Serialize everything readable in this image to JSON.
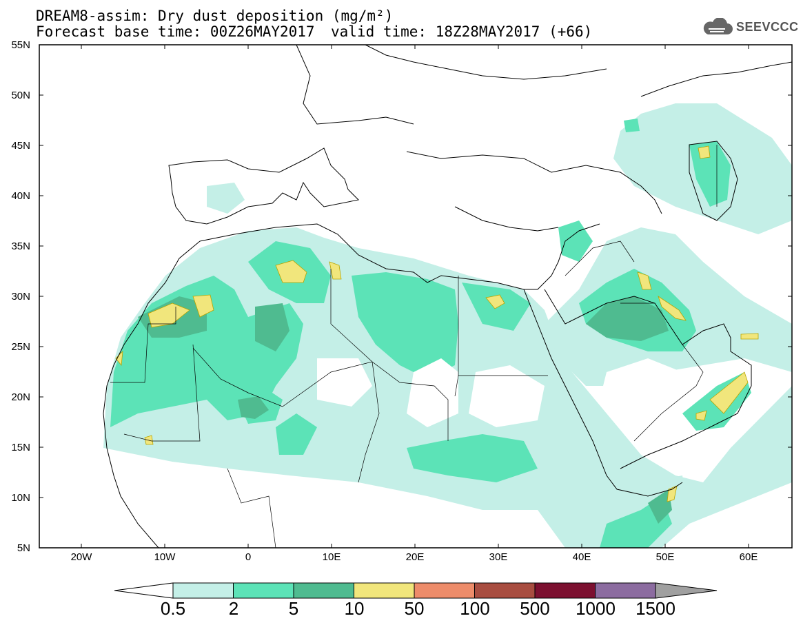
{
  "header": {
    "line1": "DREAM8-assim: Dry dust deposition (mg/m²)",
    "line2": "Forecast base time: 00Z26MAY2017",
    "line2b": "valid time: 18Z28MAY2017 (+66)"
  },
  "logo": {
    "text": "SEEVCCC",
    "icon": "cloud-icon"
  },
  "map": {
    "extent": {
      "lon_min": -25,
      "lon_max": 65,
      "lat_min": 5,
      "lat_max": 55
    },
    "lat_labels": [
      "55N",
      "50N",
      "45N",
      "40N",
      "35N",
      "30N",
      "25N",
      "20N",
      "15N",
      "10N",
      "5N"
    ],
    "lon_labels": [
      "20W",
      "10W",
      "0",
      "10E",
      "20E",
      "30E",
      "40E",
      "50E",
      "60E"
    ]
  },
  "colorbar": {
    "labels": [
      "0.5",
      "2",
      "5",
      "10",
      "50",
      "100",
      "500",
      "1000",
      "1500"
    ],
    "colors": [
      "#c4efe7",
      "#5ce3b7",
      "#4fbb90",
      "#f1e67c",
      "#ed8c6a",
      "#a84d40",
      "#7c1030",
      "#8c6ca0"
    ],
    "low_end_color": "#ffffff",
    "high_end_color": "#a0a0a0"
  }
}
